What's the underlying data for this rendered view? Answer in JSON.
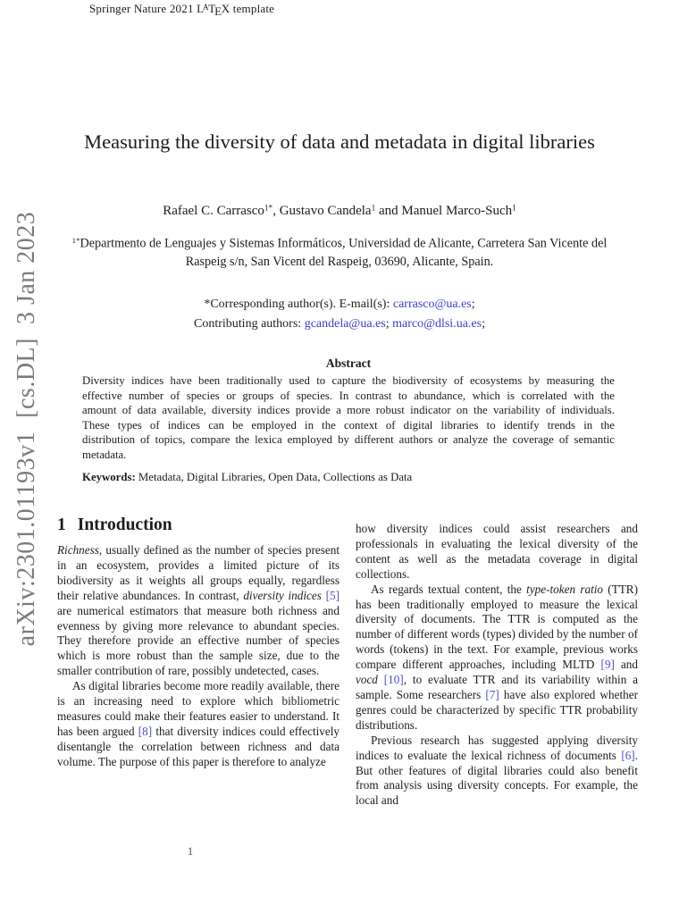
{
  "page_number": "1",
  "watermark": {
    "text": "arXiv:2301.01193v1  [cs.DL]  3 Jan 2023"
  },
  "header": {
    "segments": [
      {
        "t": "Springer Nature 2021 "
      },
      {
        "t": "L"
      },
      {
        "t": "A",
        "s": "lxA"
      },
      {
        "t": "T"
      },
      {
        "t": "E",
        "s": "lxE"
      },
      {
        "t": "X"
      },
      {
        "t": " template"
      }
    ]
  },
  "title": {
    "text": "Measuring the diversity of data and metadata in digital libraries"
  },
  "authors": {
    "segments": [
      {
        "t": "Rafael C. Carrasco"
      },
      {
        "t": "1*",
        "s": "sup"
      },
      {
        "t": ", Gustavo Candela"
      },
      {
        "t": "1",
        "s": "sup"
      },
      {
        "t": " and Manuel Marco-Such"
      },
      {
        "t": "1",
        "s": "sup"
      }
    ]
  },
  "affiliation": {
    "segments": [
      {
        "t": "1*",
        "s": "sup"
      },
      {
        "t": "Departmento de Lenguajes y Sistemas Informáticos, Universidad de Alicante, Carretera San Vicente del Raspeig s/n, San Vicent del Raspeig, 03690, Alicante, Spain."
      }
    ]
  },
  "emails": {
    "corresponding": [
      {
        "t": "*Corresponding author(s). E-mail(s): "
      },
      {
        "t": "carrasco@ua.es",
        "s": "link"
      },
      {
        "t": ";"
      }
    ],
    "contributing": [
      {
        "t": "Contributing authors: "
      },
      {
        "t": "gcandela@ua.es",
        "s": "link"
      },
      {
        "t": "; "
      },
      {
        "t": "marco@dlsi.ua.es",
        "s": "link"
      },
      {
        "t": ";"
      }
    ]
  },
  "abstract": {
    "heading": "Abstract",
    "body": "Diversity indices have been traditionally used to capture the biodiversity of ecosystems by measuring the effective number of species or groups of species. In contrast to abundance, which is correlated with the amount of data available, diversity indices provide a more robust indicator on the variability of individuals. These types of indices can be employed in the context of digital libraries to identify trends in the distribution of topics, compare the lexica employed by different authors or analyze the coverage of semantic metadata.",
    "keywords_label": "Keywords:",
    "keywords": " Metadata, Digital Libraries, Open Data, Collections as Data"
  },
  "section1": {
    "number": "1",
    "title": "Introduction"
  },
  "columns": {
    "left": [
      [
        {
          "t": "Richness",
          "s": "i"
        },
        {
          "t": ", usually defined as the number of species present in an ecosystem, provides a limited picture of its biodiversity as it weights all groups equally, regardless their relative abundances. In contrast, "
        },
        {
          "t": "diversity indices",
          "s": "i"
        },
        {
          "t": " "
        },
        {
          "t": "[5]",
          "s": "cite"
        },
        {
          "t": " are numerical estimators that measure both richness and evenness by giving more relevance to abundant species. They therefore provide an effective number of species which is more robust than the sample size, due to the smaller contribution of rare, possibly undetected, cases."
        }
      ],
      [
        {
          "t": "As digital libraries become more readily available, there is an increasing need to explore which bibliometric measures could make their features easier to understand. It has been argued "
        },
        {
          "t": "[8]",
          "s": "cite"
        },
        {
          "t": " that diversity indices could effectively disentangle the correlation between richness and data volume. The purpose of this paper is therefore to analyze"
        }
      ]
    ],
    "right": [
      [
        {
          "t": "how diversity indices could assist researchers and professionals in evaluating the lexical diversity of the content as well as the metadata coverage in digital collections."
        }
      ],
      [
        {
          "t": "As regards textual content, the "
        },
        {
          "t": "type-token ratio",
          "s": "i"
        },
        {
          "t": " (TTR) has been traditionally employed to measure the lexical diversity of documents. The TTR is computed as the number of different words (types) divided by the number of words (tokens) in the text. For example, previous works compare different approaches, including MLTD "
        },
        {
          "t": "[9]",
          "s": "cite"
        },
        {
          "t": " and "
        },
        {
          "t": "vocd",
          "s": "i"
        },
        {
          "t": " "
        },
        {
          "t": "[10]",
          "s": "cite"
        },
        {
          "t": ", to evaluate TTR and its variability within a sample. Some researchers "
        },
        {
          "t": "[7]",
          "s": "cite"
        },
        {
          "t": " have also explored whether genres could be characterized by specific TTR probability distributions."
        }
      ],
      [
        {
          "t": "Previous research has suggested applying diversity indices to evaluate the lexical richness of documents "
        },
        {
          "t": "[6]",
          "s": "cite"
        },
        {
          "t": ". But other features of digital libraries could also benefit from analysis using diversity concepts. For example, the local and"
        }
      ]
    ]
  },
  "colors": {
    "link": "#3a3ecb",
    "cite": "#4d4dd2",
    "watermark": "#7b7b7b",
    "text": "#1c1c1c"
  }
}
